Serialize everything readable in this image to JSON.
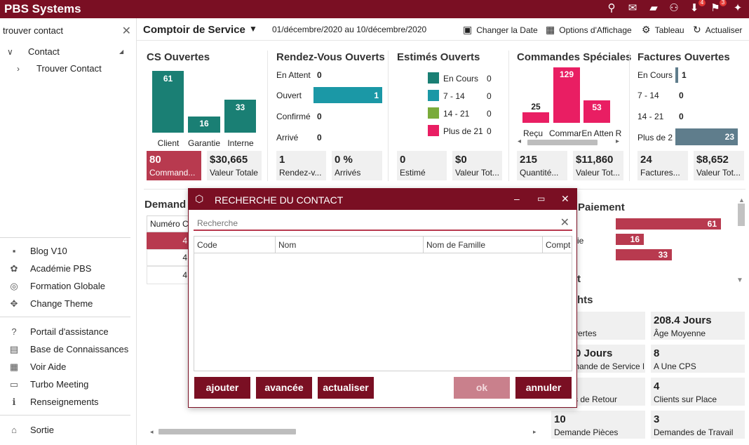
{
  "app": {
    "title": "PBS Systems"
  },
  "topbar": {
    "icons": [
      {
        "name": "search-icon",
        "glyph": "⚲"
      },
      {
        "name": "mail-icon",
        "glyph": "✉"
      },
      {
        "name": "chat-icon",
        "glyph": "▬"
      },
      {
        "name": "users-icon",
        "glyph": "👥"
      },
      {
        "name": "inbox-icon",
        "glyph": "⬇",
        "badge": "4"
      },
      {
        "name": "flag-icon",
        "glyph": "⚑",
        "badge": "3"
      },
      {
        "name": "pin-icon",
        "glyph": "📌"
      }
    ]
  },
  "sidebar": {
    "search_value": "trouver contact",
    "tree": {
      "parent": "Contact",
      "child": "Trouver Contact"
    },
    "links": [
      {
        "icon": "blog-icon",
        "glyph": "▪",
        "label": "Blog V10"
      },
      {
        "icon": "academy-icon",
        "glyph": "✿",
        "label": "Académie PBS"
      },
      {
        "icon": "globe-icon",
        "glyph": "◎",
        "label": "Formation Globale"
      },
      {
        "icon": "theme-icon",
        "glyph": "✥",
        "label": "Change Theme"
      },
      {
        "icon": "help-icon",
        "glyph": "?",
        "label": "Portail d'assistance"
      },
      {
        "icon": "knowledge-icon",
        "glyph": "▤",
        "label": "Base de Connaissances"
      },
      {
        "icon": "book-icon",
        "glyph": "▦",
        "label": "Voir Aide"
      },
      {
        "icon": "meeting-icon",
        "glyph": "▭",
        "label": "Turbo Meeting"
      },
      {
        "icon": "info-icon",
        "glyph": "ℹ",
        "label": "Renseignements"
      },
      {
        "icon": "exit-icon",
        "glyph": "⌂",
        "label": "Sortie"
      }
    ]
  },
  "toolbar": {
    "title": "Comptoir de Service",
    "date_range": "01/décembre/2020 au 10/décembre/2020",
    "change_date": "Changer la Date",
    "display_options": "Options d'Affichage",
    "dashboard": "Tableau",
    "refresh": "Actualiser"
  },
  "cards": {
    "cs": {
      "title": "CS Ouvertes",
      "bars": [
        {
          "label": "Client",
          "value": "61"
        },
        {
          "label": "Garantie",
          "value": "16"
        },
        {
          "label": "Interne",
          "value": "33"
        }
      ],
      "tiles": [
        {
          "value": "80",
          "label": "Command..."
        },
        {
          "value": "$30,665",
          "label": "Valeur Totale"
        }
      ]
    },
    "rdv": {
      "title": "Rendez-Vous Ouverts",
      "rows": [
        {
          "label": "En Attent",
          "value": "0"
        },
        {
          "label": "Ouvert",
          "value": "1"
        },
        {
          "label": "Confirmé",
          "value": "0"
        },
        {
          "label": "Arrivé",
          "value": "0"
        }
      ],
      "tiles": [
        {
          "value": "1",
          "label": "Rendez-v..."
        },
        {
          "value": "0 %",
          "label": "Arrivés"
        }
      ]
    },
    "estimes": {
      "title": "Estimés Ouverts",
      "legend": [
        {
          "label": "En Cours",
          "value": "0",
          "color": "#1a7f74"
        },
        {
          "label": "7 - 14",
          "value": "0",
          "color": "#1b98a6"
        },
        {
          "label": "14 - 21",
          "value": "0",
          "color": "#7aab3a"
        },
        {
          "label": "Plus de 21",
          "value": "0",
          "color": "#e91e63"
        }
      ],
      "tiles": [
        {
          "value": "0",
          "label": "Estimé"
        },
        {
          "value": "$0",
          "label": "Valeur Tot..."
        }
      ]
    },
    "speciales": {
      "title": "Commandes Spéciales",
      "bars": [
        {
          "label": "Reçu",
          "value": "25"
        },
        {
          "label": "Commar",
          "value": "129"
        },
        {
          "label": "En Atten",
          "value": "53"
        },
        {
          "label": "R",
          "value": ""
        }
      ],
      "tiles": [
        {
          "value": "215",
          "label": "Quantité..."
        },
        {
          "value": "$11,860",
          "label": "Valeur Tot..."
        }
      ]
    },
    "factures": {
      "title": "Factures Ouvertes",
      "rows": [
        {
          "label": "En Cours",
          "value": "1"
        },
        {
          "label": "7 - 14",
          "value": "0"
        },
        {
          "label": "14 - 21",
          "value": "0"
        },
        {
          "label": "Plus de 2",
          "value": "23"
        }
      ],
      "tiles": [
        {
          "value": "24",
          "label": "Factures..."
        },
        {
          "value": "$8,652",
          "label": "Valeur Tot..."
        }
      ]
    }
  },
  "lower": {
    "demandes_title": "Demand",
    "numero_header": "Numéro C",
    "left_row_values": [
      "4",
      "4",
      "4"
    ],
    "paiement_title": "Paiement",
    "paiement_bars": [
      {
        "label": "",
        "value": "61"
      },
      {
        "label": "ie",
        "value": "16"
      },
      {
        "label": "",
        "value": "33"
      }
    ],
    "section_t": "t",
    "section_hts": "hts",
    "stats": [
      {
        "value": "",
        "label": "vertes"
      },
      {
        "value": "208.4 Jours",
        "label": "Âge Moyenne"
      },
      {
        "value": "0 Jours",
        "label": "mande de Service L"
      },
      {
        "value": "8",
        "label": "A Une CPS"
      },
      {
        "value": "",
        "label": "s de Retour"
      },
      {
        "value": "4",
        "label": "Clients sur Place"
      },
      {
        "value": "10",
        "label": "Demande Pièces"
      },
      {
        "value": "3",
        "label": "Demandes de Travail"
      }
    ]
  },
  "dialog": {
    "title": "RECHERCHE DU CONTACT",
    "search_placeholder": "Recherche",
    "columns": [
      "Code",
      "Nom",
      "Nom de Famille",
      "Compt"
    ],
    "buttons": {
      "add": "ajouter",
      "advanced": "avancée",
      "refresh": "actualiser",
      "ok": "ok",
      "cancel": "annuler"
    }
  },
  "colors": {
    "brand": "#7a0f23",
    "teal": "#1a7f74",
    "cyan": "#1b98a6",
    "pink": "#e91e63",
    "crimson": "#b83a4f",
    "slate": "#5f7d8c"
  }
}
